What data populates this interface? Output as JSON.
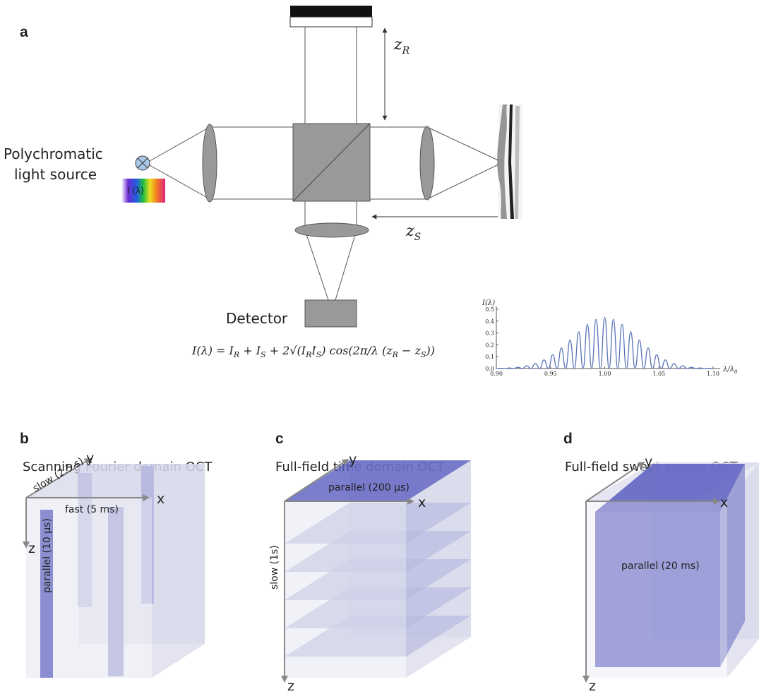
{
  "figure_a": {
    "label": "a",
    "source_label": [
      "Polychromatic",
      "light source"
    ],
    "spectrum_label": "I (λ)",
    "detector_label": "Detector",
    "z_r": {
      "main": "z",
      "sub": "R"
    },
    "z_s": {
      "main": "z",
      "sub": "S"
    },
    "equation": [
      "I(λ) = I",
      "R",
      " + I",
      "S",
      " + 2√(I",
      "R",
      "I",
      "S",
      ") cos(2π/λ (z",
      "R",
      " − z",
      "S",
      "))"
    ]
  },
  "chart_data": {
    "type": "line",
    "y_label": "I(λ)",
    "x_label": {
      "main": "λ/λ",
      "sub": "0"
    },
    "color": "#5b73b8",
    "x": [
      0.9,
      0.904,
      0.908,
      0.912,
      0.916,
      0.92,
      0.924,
      0.928,
      0.932,
      0.936,
      0.94,
      0.944,
      0.948,
      0.952,
      0.956,
      0.96,
      0.964,
      0.968,
      0.972,
      0.976,
      0.98,
      0.984,
      0.988,
      0.992,
      0.996,
      1.0,
      1.004,
      1.008,
      1.012,
      1.016,
      1.02,
      1.024,
      1.028,
      1.032,
      1.036,
      1.04,
      1.044,
      1.048,
      1.052,
      1.056,
      1.06,
      1.064,
      1.068,
      1.072,
      1.076,
      1.08,
      1.084,
      1.088,
      1.092,
      1.096,
      1.1
    ],
    "values": [
      0,
      0.002,
      0,
      0.005,
      0,
      0.011,
      0,
      0.023,
      0,
      0.042,
      0,
      0.073,
      0,
      0.116,
      0,
      0.174,
      0,
      0.24,
      0,
      0.31,
      0,
      0.372,
      0,
      0.415,
      0,
      0.43,
      0,
      0.415,
      0,
      0.372,
      0,
      0.31,
      0,
      0.24,
      0,
      0.174,
      0,
      0.116,
      0,
      0.073,
      0,
      0.042,
      0,
      0.023,
      0,
      0.011,
      0,
      0.005,
      0,
      0.002,
      0
    ],
    "xlim": [
      0.9,
      1.1
    ],
    "ylim": [
      0,
      0.5
    ],
    "xticks": [
      {
        "value": 0.9,
        "label": "0.90"
      },
      0.95,
      {
        "value": 1,
        "label": "1.00"
      },
      1.05,
      {
        "value": 1.1,
        "label": "1.10"
      }
    ],
    "yticks": [
      {
        "value": 0,
        "label": "0.0"
      },
      0.1,
      0.2,
      0.3,
      0.4,
      0.5
    ]
  },
  "panels": [
    {
      "label": "b",
      "title": "Scanning Fourier domain OCT",
      "axes": [
        "x",
        "y",
        "z"
      ],
      "annotations": [
        "slow (2.5 s)",
        "fast (5 ms)",
        "parallel (10 µs)"
      ]
    },
    {
      "label": "c",
      "title": "Full-field time domain OCT",
      "axes": [
        "x",
        "y",
        "z"
      ],
      "annotations": [
        "parallel (200 µs)",
        "slow (1s)"
      ]
    },
    {
      "label": "d",
      "title": "Full-field swept source OCT",
      "axes": [
        "x",
        "y",
        "z"
      ],
      "annotations": [
        "parallel (20 ms)"
      ]
    }
  ]
}
